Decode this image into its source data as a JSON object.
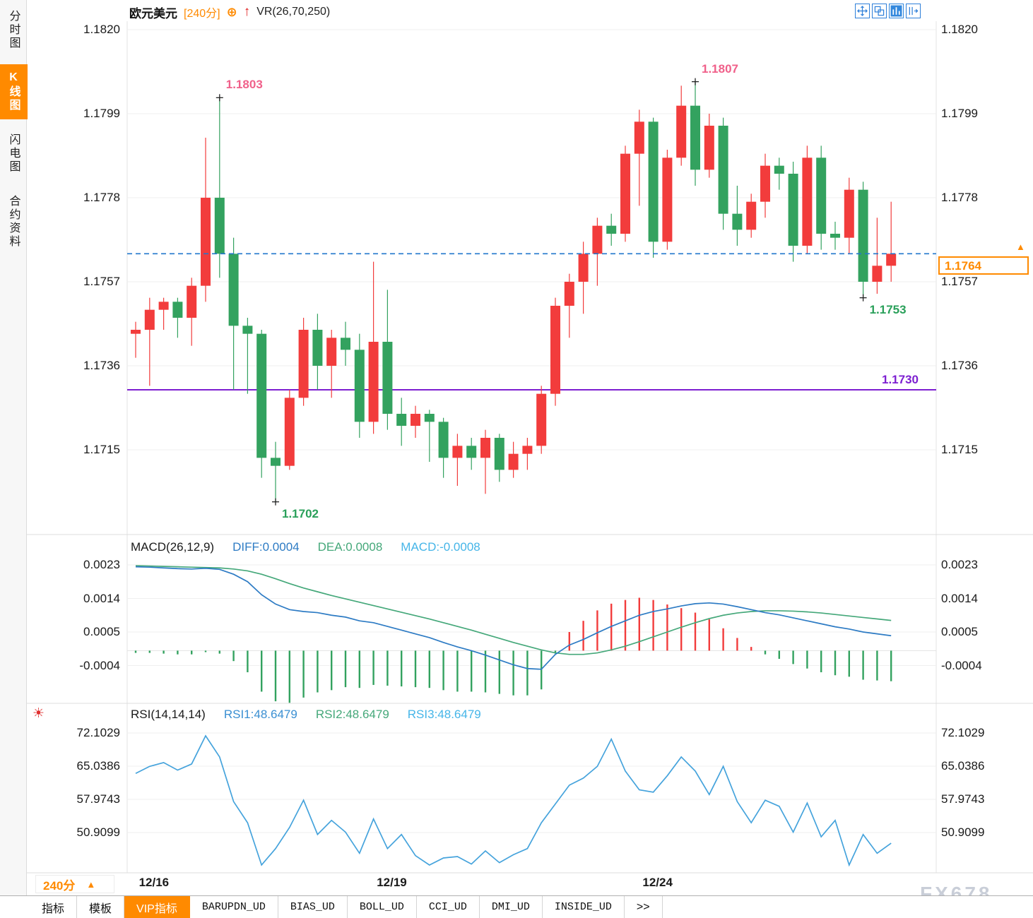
{
  "meta": {
    "watermark": "FX678"
  },
  "colors": {
    "up": "#f23c3c",
    "down": "#33a25f",
    "accent_orange": "#ff8a00",
    "annotation_high": "#f0608a",
    "annotation_low": "#2aa05a",
    "support_purple": "#7d1fd1",
    "price_line_blue": "#2277cc",
    "diff_blue": "#2d7bc4",
    "dea_green": "#45a87a",
    "macd_text_blue": "#45b5e8",
    "rsi_blue": "#45a3dc",
    "toolbar_blue": "#2e7fd9",
    "grid": "#efefef"
  },
  "sidebar": {
    "items": [
      {
        "id": "time-chart",
        "label": "分时图",
        "active": false
      },
      {
        "id": "kline-chart",
        "label": "K线图",
        "active": true
      },
      {
        "id": "flash-chart",
        "label": "闪电图",
        "active": false
      },
      {
        "id": "contract-info",
        "label": "合约资料",
        "active": false
      }
    ]
  },
  "header": {
    "symbol": "欧元美元",
    "period": "[240分]",
    "plus_glyph": "⊕",
    "arrow_glyph": "↑",
    "indicator": "VR(26,70,250)",
    "toolbar_icons": [
      {
        "name": "pan-icon",
        "active": false
      },
      {
        "name": "overlay-compare-icon",
        "active": false
      },
      {
        "name": "chart-style-icon",
        "active": true
      },
      {
        "name": "window-split-icon",
        "active": false
      }
    ]
  },
  "macd_panel": {
    "title": "MACD(26,12,9)",
    "diff_label": "DIFF:0.0004",
    "dea_label": "DEA:0.0008",
    "macd_label": "MACD:-0.0008"
  },
  "rsi_panel": {
    "title": "RSI(14,14,14)",
    "rsi1_label": "RSI1:48.6479",
    "rsi2_label": "RSI2:48.6479",
    "rsi3_label": "RSI3:48.6479",
    "sun_glyph": "☀"
  },
  "x_axis": {
    "period_label": "240分",
    "marker": "▲"
  },
  "bottom_tabs": {
    "items": [
      {
        "id": "indicators",
        "label": "指标",
        "active": false,
        "mono": false
      },
      {
        "id": "templates",
        "label": "模板",
        "active": false,
        "mono": false
      },
      {
        "id": "vip-indicators",
        "label": "VIP指标",
        "active": true,
        "mono": false
      },
      {
        "id": "barupdn",
        "label": "BARUPDN_UD",
        "active": false,
        "mono": true
      },
      {
        "id": "bias",
        "label": "BIAS_UD",
        "active": false,
        "mono": true
      },
      {
        "id": "boll",
        "label": "BOLL_UD",
        "active": false,
        "mono": true
      },
      {
        "id": "cci",
        "label": "CCI_UD",
        "active": false,
        "mono": true
      },
      {
        "id": "dmi",
        "label": "DMI_UD",
        "active": false,
        "mono": true
      },
      {
        "id": "inside",
        "label": "INSIDE_UD",
        "active": false,
        "mono": true
      },
      {
        "id": "more",
        "label": ">>",
        "active": false,
        "mono": false
      }
    ]
  },
  "chart_data": [
    {
      "type": "candlestick",
      "title": "欧元美元 240分",
      "ylim": [
        1.1695,
        1.1822
      ],
      "yticks": [
        1.182,
        1.1799,
        1.1778,
        1.1757,
        1.1736,
        1.1715
      ],
      "x_date_labels": [
        {
          "text": "12/16",
          "candle_index": 2
        },
        {
          "text": "12/19",
          "candle_index": 19
        },
        {
          "text": "12/24",
          "candle_index": 38
        }
      ],
      "candles_ohlc": [
        [
          1.1744,
          1.1747,
          1.1738,
          1.1745
        ],
        [
          1.1745,
          1.1753,
          1.1731,
          1.175
        ],
        [
          1.175,
          1.1753,
          1.1745,
          1.1752
        ],
        [
          1.1752,
          1.1753,
          1.1743,
          1.1748
        ],
        [
          1.1748,
          1.1758,
          1.1741,
          1.1756
        ],
        [
          1.1756,
          1.1793,
          1.1752,
          1.1778
        ],
        [
          1.1778,
          1.1803,
          1.1758,
          1.1764
        ],
        [
          1.1764,
          1.1768,
          1.173,
          1.1746
        ],
        [
          1.1746,
          1.1748,
          1.1729,
          1.1744
        ],
        [
          1.1744,
          1.1745,
          1.1708,
          1.1713
        ],
        [
          1.1713,
          1.1717,
          1.1702,
          1.1711
        ],
        [
          1.1711,
          1.173,
          1.171,
          1.1728
        ],
        [
          1.1728,
          1.1748,
          1.1726,
          1.1745
        ],
        [
          1.1745,
          1.1749,
          1.173,
          1.1736
        ],
        [
          1.1736,
          1.1745,
          1.1728,
          1.1743
        ],
        [
          1.1743,
          1.1747,
          1.1736,
          1.174
        ],
        [
          1.174,
          1.1744,
          1.1718,
          1.1722
        ],
        [
          1.1722,
          1.1762,
          1.1719,
          1.1742
        ],
        [
          1.1742,
          1.1755,
          1.172,
          1.1724
        ],
        [
          1.1724,
          1.1728,
          1.1716,
          1.1721
        ],
        [
          1.1721,
          1.1726,
          1.1718,
          1.1724
        ],
        [
          1.1724,
          1.1725,
          1.1712,
          1.1722
        ],
        [
          1.1722,
          1.1723,
          1.1708,
          1.1713
        ],
        [
          1.1713,
          1.1719,
          1.1706,
          1.1716
        ],
        [
          1.1716,
          1.1718,
          1.171,
          1.1713
        ],
        [
          1.1713,
          1.172,
          1.1704,
          1.1718
        ],
        [
          1.1718,
          1.1719,
          1.1707,
          1.171
        ],
        [
          1.171,
          1.1717,
          1.1708,
          1.1714
        ],
        [
          1.1714,
          1.1718,
          1.171,
          1.1716
        ],
        [
          1.1716,
          1.1731,
          1.1714,
          1.1729
        ],
        [
          1.1729,
          1.1753,
          1.1726,
          1.1751
        ],
        [
          1.1751,
          1.1759,
          1.1743,
          1.1757
        ],
        [
          1.1757,
          1.1767,
          1.1749,
          1.1764
        ],
        [
          1.1764,
          1.1773,
          1.1756,
          1.1771
        ],
        [
          1.1771,
          1.1774,
          1.1766,
          1.1769
        ],
        [
          1.1769,
          1.1791,
          1.1767,
          1.1789
        ],
        [
          1.1789,
          1.18,
          1.1776,
          1.1797
        ],
        [
          1.1797,
          1.1798,
          1.1763,
          1.1767
        ],
        [
          1.1767,
          1.179,
          1.1765,
          1.1788
        ],
        [
          1.1788,
          1.1806,
          1.1786,
          1.1801
        ],
        [
          1.1801,
          1.1807,
          1.1781,
          1.1785
        ],
        [
          1.1785,
          1.1799,
          1.1783,
          1.1796
        ],
        [
          1.1796,
          1.1798,
          1.177,
          1.1774
        ],
        [
          1.1774,
          1.1781,
          1.1766,
          1.177
        ],
        [
          1.177,
          1.1779,
          1.1768,
          1.1777
        ],
        [
          1.1777,
          1.1789,
          1.1773,
          1.1786
        ],
        [
          1.1786,
          1.1788,
          1.178,
          1.1784
        ],
        [
          1.1784,
          1.1787,
          1.1762,
          1.1766
        ],
        [
          1.1766,
          1.1791,
          1.1764,
          1.1788
        ],
        [
          1.1788,
          1.1791,
          1.1765,
          1.1769
        ],
        [
          1.1769,
          1.1772,
          1.1765,
          1.1768
        ],
        [
          1.1768,
          1.1783,
          1.1764,
          1.178
        ],
        [
          1.178,
          1.1782,
          1.1753,
          1.1757
        ],
        [
          1.1757,
          1.1773,
          1.1754,
          1.1761
        ],
        [
          1.1761,
          1.1777,
          1.1757,
          1.1764
        ]
      ],
      "annotations": [
        {
          "text": "1.1803",
          "candle_index": 6,
          "position": "high"
        },
        {
          "text": "1.1807",
          "candle_index": 40,
          "position": "high"
        },
        {
          "text": "1.1702",
          "candle_index": 10,
          "position": "low"
        },
        {
          "text": "1.1753",
          "candle_index": 52,
          "position": "low"
        }
      ],
      "levels": [
        {
          "value": 1.1764,
          "style": "dashed",
          "color_key": "price_line_blue",
          "label": "1.1764"
        },
        {
          "value": 1.173,
          "style": "solid",
          "color_key": "support_purple",
          "label": "1.1730"
        }
      ]
    },
    {
      "type": "macd",
      "title": "MACD(26,12,9)",
      "yticks": [
        0.0023,
        0.0014,
        0.0005,
        -0.0004
      ],
      "histogram_rule": "2*(diff-dea)",
      "current": {
        "diff": 0.0004,
        "dea": 0.0008,
        "macd": -0.0008
      },
      "diff": [
        0.00225,
        0.00224,
        0.00222,
        0.0022,
        0.00219,
        0.00221,
        0.00218,
        0.00205,
        0.00185,
        0.0015,
        0.00125,
        0.0011,
        0.00105,
        0.00102,
        0.00095,
        0.0009,
        0.0008,
        0.00075,
        0.00065,
        0.00055,
        0.00045,
        0.00035,
        0.00022,
        0.0001,
        0.0,
        -0.00012,
        -0.00025,
        -0.00038,
        -0.00048,
        -0.0005,
        -0.0001,
        0.00015,
        0.0003,
        0.00048,
        0.00065,
        0.0008,
        0.00095,
        0.00105,
        0.00112,
        0.0012,
        0.00126,
        0.00128,
        0.00125,
        0.00118,
        0.0011,
        0.00102,
        0.00096,
        0.00088,
        0.0008,
        0.00072,
        0.00064,
        0.00058,
        0.0005,
        0.00045,
        0.0004
      ],
      "dea": [
        0.00228,
        0.00227,
        0.00226,
        0.00225,
        0.00224,
        0.00223,
        0.00222,
        0.00219,
        0.00214,
        0.00205,
        0.00193,
        0.0018,
        0.00168,
        0.00158,
        0.00148,
        0.00139,
        0.0013,
        0.00121,
        0.00112,
        0.00103,
        0.00094,
        0.00085,
        0.00075,
        0.00065,
        0.00055,
        0.00044,
        0.00033,
        0.00022,
        0.00012,
        2e-05,
        -6e-05,
        -0.0001,
        -0.0001,
        -6e-05,
        2e-05,
        0.00012,
        0.00024,
        0.00037,
        0.0005,
        0.00063,
        0.00075,
        0.00086,
        0.00095,
        0.00101,
        0.00105,
        0.00107,
        0.00107,
        0.00106,
        0.00104,
        0.00101,
        0.00097,
        0.00093,
        0.00089,
        0.00085,
        0.00081
      ]
    },
    {
      "type": "rsi",
      "title": "RSI(14,14,14)",
      "yticks": [
        72.1029,
        65.0386,
        57.9743,
        50.9099
      ],
      "current": {
        "rsi1": 48.6479,
        "rsi2": 48.6479,
        "rsi3": 48.6479
      },
      "series": [
        {
          "name": "RSI1",
          "values": [
            63.5,
            65.0,
            65.8,
            64.2,
            65.5,
            71.5,
            67.0,
            57.5,
            53.0,
            44.0,
            47.5,
            52.0,
            57.8,
            50.5,
            53.5,
            51.0,
            46.5,
            53.8,
            47.5,
            50.5,
            46.0,
            44.0,
            45.5,
            45.8,
            44.2,
            47.0,
            44.5,
            46.2,
            47.5,
            53.0,
            57.0,
            61.0,
            62.5,
            65.0,
            70.8,
            64.0,
            60.0,
            59.5,
            63.0,
            67.0,
            64.0,
            59.0,
            65.0,
            57.5,
            53.0,
            57.8,
            56.5,
            51.0,
            57.2,
            50.0,
            53.5,
            44.0,
            50.5,
            46.5,
            48.6479
          ]
        }
      ]
    }
  ]
}
